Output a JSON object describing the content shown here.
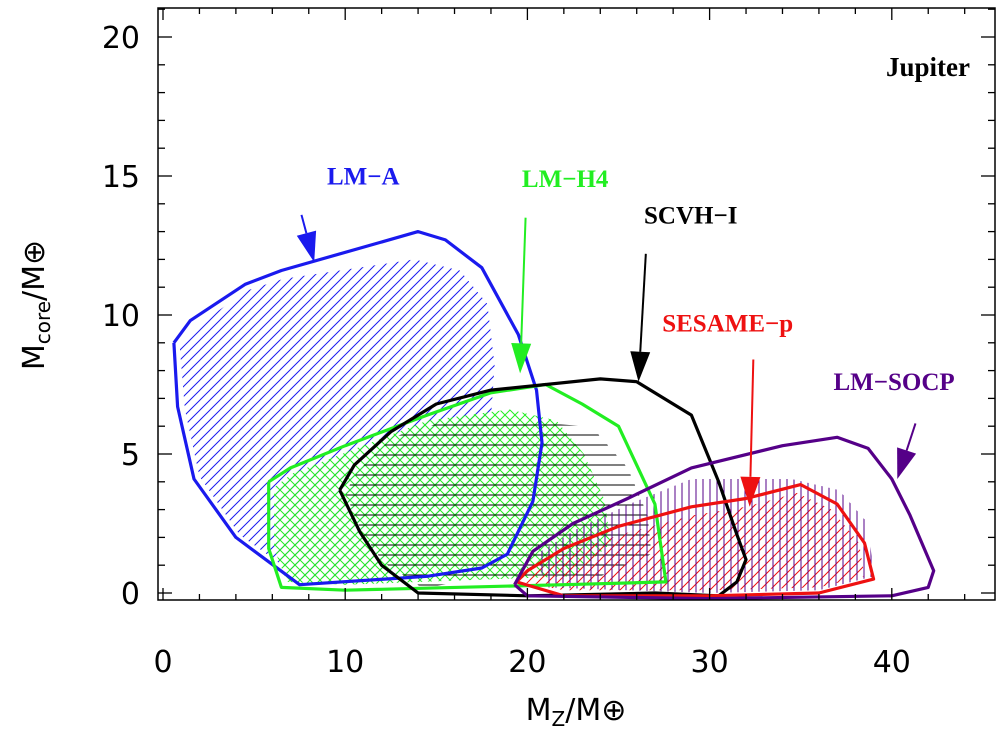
{
  "chart_data": {
    "type": "area",
    "title": "Jupiter",
    "xlabel": {
      "main": "M",
      "sub": "Z",
      "tail": "/M",
      "sub2": "⊕"
    },
    "ylabel": {
      "main": "M",
      "sub": "core",
      "tail": "/M",
      "sub2": "⊕"
    },
    "xlim": [
      0,
      45
    ],
    "ylim": [
      -0.3,
      21
    ],
    "x_ticks": [
      0,
      10,
      20,
      30,
      40
    ],
    "x_tick_labels": [
      "0",
      "10",
      "20",
      "30",
      "40"
    ],
    "y_ticks": [
      0,
      5,
      10,
      15,
      20
    ],
    "y_tick_labels": [
      "0",
      "5",
      "10",
      "15",
      "20"
    ],
    "grid": false,
    "legend": "none",
    "series": [
      {
        "name": "LM−A",
        "color": "#1a1aee",
        "hatch": "diagonal",
        "label_at": [
          9,
          14.7
        ],
        "arrow": {
          "from": [
            7.6,
            13.6
          ],
          "to": [
            8.3,
            11.9
          ]
        },
        "outline": [
          [
            0.6,
            9.0
          ],
          [
            1.5,
            9.8
          ],
          [
            4.5,
            11.1
          ],
          [
            6.5,
            11.6
          ],
          [
            14,
            13.0
          ],
          [
            15.5,
            12.7
          ],
          [
            17.5,
            11.7
          ],
          [
            19.5,
            9.3
          ],
          [
            20.5,
            7.3
          ],
          [
            20.8,
            5.4
          ],
          [
            20.3,
            3.3
          ],
          [
            18.9,
            1.4
          ],
          [
            17.5,
            0.9
          ],
          [
            14.5,
            0.6
          ],
          [
            7.5,
            0.3
          ],
          [
            4,
            2.0
          ],
          [
            1.7,
            4.1
          ],
          [
            0.8,
            6.7
          ],
          [
            0.6,
            9.0
          ]
        ],
        "fill_region": [
          [
            0.9,
            9.0
          ],
          [
            1.8,
            9.6
          ],
          [
            4.7,
            10.9
          ],
          [
            6.6,
            11.3
          ],
          [
            13.8,
            12.0
          ],
          [
            16.3,
            11.6
          ],
          [
            17.8,
            10.4
          ],
          [
            18.2,
            8.2
          ],
          [
            18.0,
            6.3
          ],
          [
            17.6,
            4.3
          ],
          [
            16.8,
            2.6
          ],
          [
            15.6,
            1.2
          ],
          [
            13.8,
            0.7
          ],
          [
            7.6,
            0.5
          ],
          [
            4.2,
            2.1
          ],
          [
            2,
            4.2
          ],
          [
            1.2,
            6.6
          ]
        ]
      },
      {
        "name": "LM−H4",
        "color": "#22ee22",
        "hatch": "cross",
        "label_at": [
          19.7,
          14.6
        ],
        "arrow": {
          "from": [
            19.9,
            13.5
          ],
          "to": [
            19.6,
            7.9
          ]
        },
        "outline": [
          [
            5.8,
            4.0
          ],
          [
            7,
            4.5
          ],
          [
            10,
            5.3
          ],
          [
            14.5,
            6.4
          ],
          [
            18,
            7.2
          ],
          [
            21,
            7.5
          ],
          [
            23,
            6.8
          ],
          [
            25,
            6.0
          ],
          [
            26,
            4.6
          ],
          [
            27,
            3.2
          ],
          [
            27.6,
            0.4
          ],
          [
            22,
            0.3
          ],
          [
            10,
            0.1
          ],
          [
            6.5,
            0.2
          ],
          [
            5.8,
            1.6
          ],
          [
            5.8,
            4.0
          ]
        ],
        "fill_region": [
          [
            6.1,
            3.8
          ],
          [
            7.1,
            4.3
          ],
          [
            10.2,
            5.1
          ],
          [
            14.5,
            6.2
          ],
          [
            19,
            6.6
          ],
          [
            21.6,
            6.2
          ],
          [
            23.1,
            5.0
          ],
          [
            24.2,
            3.4
          ],
          [
            24.6,
            1.8
          ],
          [
            22.5,
            0.6
          ],
          [
            10,
            0.3
          ],
          [
            6.8,
            0.4
          ],
          [
            6.1,
            1.6
          ]
        ]
      },
      {
        "name": "SCVH−I",
        "color": "#000000",
        "hatch": "horizontal",
        "label_at": [
          26.4,
          13.3
        ],
        "arrow": {
          "from": [
            26.5,
            12.2
          ],
          "to": [
            26.1,
            7.6
          ]
        },
        "outline": [
          [
            9.7,
            3.7
          ],
          [
            10.5,
            4.6
          ],
          [
            12.5,
            5.8
          ],
          [
            15,
            6.8
          ],
          [
            18,
            7.3
          ],
          [
            24,
            7.7
          ],
          [
            26,
            7.6
          ],
          [
            29,
            6.4
          ],
          [
            30.5,
            4.0
          ],
          [
            31.5,
            2.1
          ],
          [
            32,
            1.2
          ],
          [
            31.5,
            0.4
          ],
          [
            30.5,
            -0.1
          ],
          [
            27,
            0.0
          ],
          [
            20,
            -0.1
          ],
          [
            14,
            0.0
          ],
          [
            12,
            1.0
          ],
          [
            10.8,
            2.2
          ],
          [
            9.7,
            3.7
          ]
        ],
        "fill_region": [
          [
            10.0,
            3.6
          ],
          [
            10.7,
            4.4
          ],
          [
            12.6,
            5.6
          ],
          [
            15.1,
            6.1
          ],
          [
            18,
            6.2
          ],
          [
            23.5,
            6.0
          ],
          [
            25.5,
            4.5
          ],
          [
            26.6,
            2.8
          ],
          [
            26.8,
            1.4
          ],
          [
            24,
            0.6
          ],
          [
            18,
            0.5
          ],
          [
            14.2,
            0.2
          ],
          [
            12.1,
            1.1
          ],
          [
            10.9,
            2.2
          ]
        ]
      },
      {
        "name": "SESAME−p",
        "color": "#ee1111",
        "hatch": "diagonal",
        "label_at": [
          27.4,
          9.4
        ],
        "arrow": {
          "from": [
            32.4,
            8.4
          ],
          "to": [
            32.2,
            3.1
          ]
        },
        "outline": [
          [
            19.4,
            0.4
          ],
          [
            20,
            0.8
          ],
          [
            22,
            1.6
          ],
          [
            25,
            2.4
          ],
          [
            29,
            3.1
          ],
          [
            32,
            3.4
          ],
          [
            35,
            3.9
          ],
          [
            37,
            3.2
          ],
          [
            38.5,
            1.8
          ],
          [
            39,
            0.5
          ],
          [
            36,
            0.0
          ],
          [
            30,
            -0.1
          ],
          [
            22,
            -0.1
          ],
          [
            19.4,
            0.4
          ]
        ],
        "fill_region": [
          [
            19.6,
            0.4
          ],
          [
            20.2,
            0.7
          ],
          [
            22.1,
            1.4
          ],
          [
            25.1,
            2.1
          ],
          [
            29.1,
            2.8
          ],
          [
            32,
            3.1
          ],
          [
            34.8,
            3.6
          ],
          [
            36.7,
            3.0
          ],
          [
            38.2,
            1.8
          ],
          [
            38.5,
            0.6
          ],
          [
            36,
            0.2
          ],
          [
            30,
            0.1
          ],
          [
            22,
            0.1
          ]
        ]
      },
      {
        "name": "LM−SOCP",
        "color": "#550088",
        "hatch": "vertical",
        "label_at": [
          36.8,
          7.3
        ],
        "arrow": {
          "from": [
            41.3,
            6.1
          ],
          "to": [
            40.3,
            4.1
          ]
        },
        "outline": [
          [
            19.3,
            0.3
          ],
          [
            20.3,
            1.5
          ],
          [
            22.5,
            2.5
          ],
          [
            25.5,
            3.4
          ],
          [
            29,
            4.5
          ],
          [
            34,
            5.3
          ],
          [
            37,
            5.6
          ],
          [
            38.7,
            5.2
          ],
          [
            40,
            4.1
          ],
          [
            41,
            2.8
          ],
          [
            42.3,
            0.8
          ],
          [
            42,
            0.2
          ],
          [
            40,
            -0.1
          ],
          [
            30,
            -0.2
          ],
          [
            20,
            -0.1
          ],
          [
            19.3,
            0.3
          ]
        ],
        "fill_region": [
          [
            20.5,
            1.4
          ],
          [
            22.7,
            2.3
          ],
          [
            25.6,
            3.2
          ],
          [
            29,
            4.1
          ],
          [
            34.5,
            4.1
          ],
          [
            37.1,
            3.7
          ],
          [
            38.7,
            2.5
          ],
          [
            39.0,
            0.6
          ],
          [
            36,
            0.1
          ],
          [
            30,
            0.0
          ],
          [
            21,
            0.2
          ]
        ]
      }
    ]
  }
}
